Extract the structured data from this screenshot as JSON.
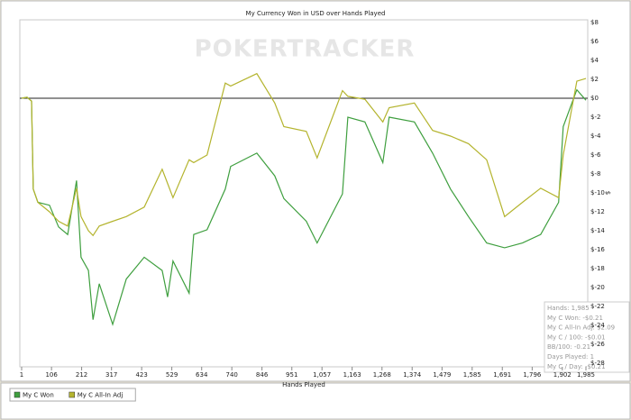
{
  "chart_data": {
    "type": "line",
    "title": "My Currency Won in USD over Hands Played",
    "watermark": "POKERTRACKER",
    "x_label": "Hands Played",
    "y_label": "$",
    "x": [
      1,
      20,
      36,
      42,
      58,
      99,
      131,
      163,
      194,
      210,
      236,
      252,
      274,
      321,
      369,
      432,
      495,
      514,
      533,
      590,
      606,
      653,
      717,
      736,
      828,
      891,
      923,
      1002,
      1040,
      1129,
      1148,
      1208,
      1271,
      1293,
      1382,
      1446,
      1509,
      1572,
      1636,
      1699,
      1762,
      1826,
      1889,
      1905,
      1953,
      1985
    ],
    "series": [
      {
        "name": "My C Won",
        "color": "#3f9f3f",
        "values": [
          0,
          0.1,
          -0.3,
          -9.6,
          -11.0,
          -11.3,
          -13.6,
          -14.4,
          -8.7,
          -16.8,
          -18.2,
          -23.4,
          -19.6,
          -23.9,
          -19.1,
          -16.8,
          -18.2,
          -21.0,
          -17.2,
          -20.6,
          -14.4,
          -13.9,
          -9.6,
          -7.2,
          -5.8,
          -8.2,
          -10.6,
          -13.0,
          -15.3,
          -10.1,
          -2.0,
          -2.5,
          -6.8,
          -2.0,
          -2.5,
          -5.8,
          -9.6,
          -12.5,
          -15.3,
          -15.8,
          -15.3,
          -14.4,
          -11.0,
          -3.0,
          0.9,
          -0.21
        ]
      },
      {
        "name": "My C All-In Adj",
        "color": "#b4b42e",
        "values": [
          0,
          0.1,
          -0.3,
          -9.6,
          -11.0,
          -12.0,
          -13.0,
          -13.5,
          -9.5,
          -12.5,
          -14.0,
          -14.5,
          -13.5,
          -13.0,
          -12.5,
          -11.5,
          -7.5,
          -9.0,
          -10.5,
          -6.5,
          -6.8,
          -6.0,
          1.6,
          1.3,
          2.6,
          -0.5,
          -3.0,
          -3.5,
          -6.3,
          0.8,
          0.2,
          -0.1,
          -2.5,
          -1.0,
          -0.5,
          -3.4,
          -4.0,
          -4.8,
          -6.5,
          -12.5,
          -11.0,
          -9.5,
          -10.5,
          -6.0,
          1.8,
          2.09
        ]
      }
    ],
    "xlim": [
      1,
      1985
    ],
    "xticks": [
      1,
      106,
      212,
      317,
      423,
      529,
      634,
      740,
      846,
      951,
      {
        "value": 1057,
        "label": "1,057"
      },
      {
        "value": 1163,
        "label": "1,163"
      },
      {
        "value": 1268,
        "label": "1,268"
      },
      {
        "value": 1374,
        "label": "1,374"
      },
      {
        "value": 1479,
        "label": "1,479"
      },
      {
        "value": 1585,
        "label": "1,585"
      },
      {
        "value": 1691,
        "label": "1,691"
      },
      {
        "value": 1796,
        "label": "1,796"
      },
      {
        "value": 1902,
        "label": "1,902"
      },
      {
        "value": 1985,
        "label": "1,985"
      }
    ],
    "ylim": [
      -28,
      8
    ],
    "yticks": [
      {
        "value": 8,
        "label": "$8"
      },
      {
        "value": 6,
        "label": "$6"
      },
      {
        "value": 4,
        "label": "$4"
      },
      {
        "value": 2,
        "label": "$2"
      },
      {
        "value": 0,
        "label": "$0"
      },
      {
        "value": -2,
        "label": "$-2"
      },
      {
        "value": -4,
        "label": "$-4"
      },
      {
        "value": -6,
        "label": "$-6"
      },
      {
        "value": -8,
        "label": "$-8"
      },
      {
        "value": -10,
        "label": "$-10"
      },
      {
        "value": -12,
        "label": "$-12"
      },
      {
        "value": -14,
        "label": "$-14"
      },
      {
        "value": -16,
        "label": "$-16"
      },
      {
        "value": -18,
        "label": "$-18"
      },
      {
        "value": -20,
        "label": "$-20"
      },
      {
        "value": -22,
        "label": "$-22"
      },
      {
        "value": -24,
        "label": "$-24"
      },
      {
        "value": -26,
        "label": "$-26"
      },
      {
        "value": -28,
        "label": "$-28"
      }
    ],
    "y_axis_side": "right",
    "zero_line": true,
    "grid": false,
    "legend_position": "bottom-left",
    "tooltip": [
      "Hands: 1,985",
      "My C Won: -$0.21",
      "My C All-In Adj: $2.09",
      "My C / 100: -$0.01",
      "BB/100: -0.21",
      "Days Played: 1",
      "My C / Day: -$0.21"
    ]
  }
}
